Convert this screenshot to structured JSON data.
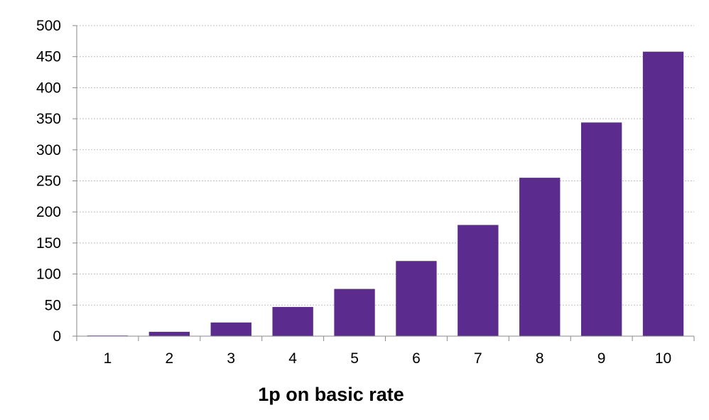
{
  "chart_data": {
    "type": "bar",
    "categories": [
      "1",
      "2",
      "3",
      "4",
      "5",
      "6",
      "7",
      "8",
      "9",
      "10"
    ],
    "values": [
      1,
      7,
      22,
      47,
      76,
      121,
      179,
      255,
      344,
      458
    ],
    "xlabel": "1p on basic rate",
    "ylabel": "",
    "ylim": [
      0,
      500
    ],
    "yticks": [
      0,
      50,
      100,
      150,
      200,
      250,
      300,
      350,
      400,
      450,
      500
    ],
    "grid": true,
    "legend": "none",
    "colors": {
      "bar": "#5b2c8d",
      "grid": "#bfbfbf",
      "axis": "#898989"
    }
  }
}
